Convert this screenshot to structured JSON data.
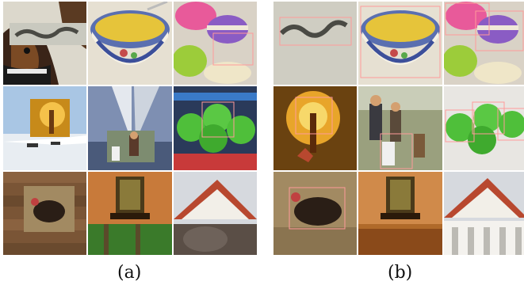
{
  "captions": {
    "a": "(a)",
    "b": "(b)"
  },
  "panels": [
    {
      "id": "a",
      "style": "cutmix-style mosaic with pasted patches from other images"
    },
    {
      "id": "b",
      "style": "mosaic of tiles with outlined object regions"
    }
  ],
  "palette": {
    "frame": "#ffffff",
    "box_outline": "#ff9a9a",
    "apple_green": "#4fbf3a",
    "bowl_yellow": "#e6c43a",
    "macaron_pink": "#e85a9a",
    "macaron_purple": "#8a5cc4",
    "sky_blue": "#a9c6e4",
    "wood_brown": "#7a5536",
    "roof_red": "#b8482f",
    "glow_orange": "#e8a52a"
  }
}
